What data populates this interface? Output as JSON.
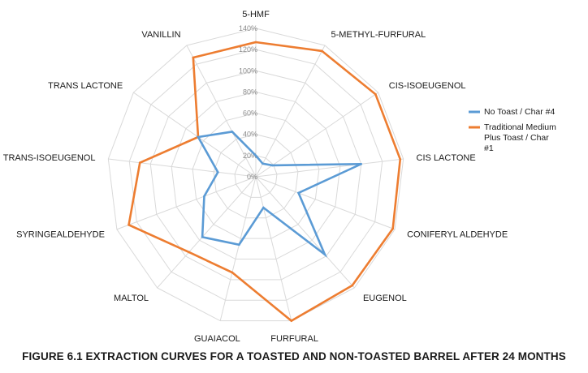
{
  "chart_data": {
    "type": "radar",
    "axes": [
      "5-HMF",
      "5-METHYL-FURFURAL",
      "CIS-ISOEUGENOL",
      "CIS LACTONE",
      "CONIFERYL ALDEHYDE",
      "EUGENOL",
      "FURFURAL",
      "GUAIACOL",
      "MALTOL",
      "SYRINGEALDEHYDE",
      "TRANS-ISOEUGENOL",
      "TRANS LACTONE",
      "VANILLIN"
    ],
    "ticks": [
      "0%",
      "20%",
      "40%",
      "60%",
      "80%",
      "100%",
      "120%",
      "140%"
    ],
    "rmax": 140,
    "series": [
      {
        "name": "No Toast / Char #4",
        "color": "#5b9bd5",
        "values": [
          20,
          14,
          19,
          100,
          43,
          98,
          30,
          66,
          76,
          52,
          36,
          66,
          48
        ]
      },
      {
        "name": "Traditional Medium Plus Toast / Char #1",
        "color": "#ed7d31",
        "values": [
          127,
          134,
          137,
          137,
          138,
          137,
          140,
          93,
          95,
          128,
          110,
          66,
          127
        ]
      }
    ],
    "grid": true,
    "legend_position": "right",
    "caption": "FIGURE 6.1  EXTRACTION CURVES FOR A TOASTED AND NON-TOASTED BARREL AFTER 24 MONTHS"
  }
}
